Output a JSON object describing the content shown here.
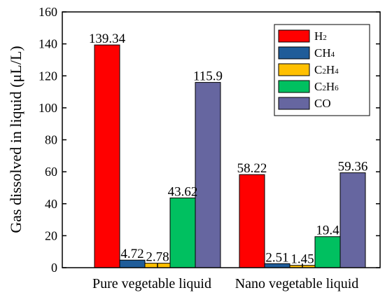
{
  "chart_data": {
    "type": "bar",
    "categories": [
      "Pure vegetable liquid",
      "Nano vegetable liquid"
    ],
    "series": [
      {
        "name": "H2",
        "label_main": [
          "H"
        ],
        "label_sub": [
          "2"
        ],
        "color": "#ff0000",
        "values": [
          139.34,
          58.22
        ],
        "value_labels": [
          "139.34",
          "58.22"
        ]
      },
      {
        "name": "CH4",
        "label_main": [
          "CH"
        ],
        "label_sub": [
          "4"
        ],
        "color": "#1f5c99",
        "values": [
          4.72,
          2.51
        ],
        "value_labels": [
          "4.72",
          "2.51"
        ]
      },
      {
        "name": "C2H4",
        "label_main": [
          "C",
          "H"
        ],
        "label_sub": [
          "2",
          "4"
        ],
        "color": "#ffc000",
        "values": [
          2.78,
          1.45
        ],
        "value_labels": [
          "2.78",
          "1.45"
        ]
      },
      {
        "name": "C2H6",
        "label_main": [
          "C",
          "H"
        ],
        "label_sub": [
          "2",
          "6"
        ],
        "color": "#00c060",
        "values": [
          43.62,
          19.4
        ],
        "value_labels": [
          "43.62",
          "19.4"
        ]
      },
      {
        "name": "CO",
        "label_main": [
          "CO"
        ],
        "label_sub": [
          ""
        ],
        "color": "#6666a0",
        "values": [
          115.9,
          59.36
        ],
        "value_labels": [
          "115.9",
          "59.36"
        ]
      }
    ],
    "ylabel": "Gas dissolved in liquid (μL/L)",
    "ylim": [
      0,
      160
    ],
    "yticks": [
      "0",
      "20",
      "40",
      "60",
      "80",
      "100",
      "120",
      "140",
      "160"
    ],
    "legend_position": "top-right",
    "grid": false
  }
}
